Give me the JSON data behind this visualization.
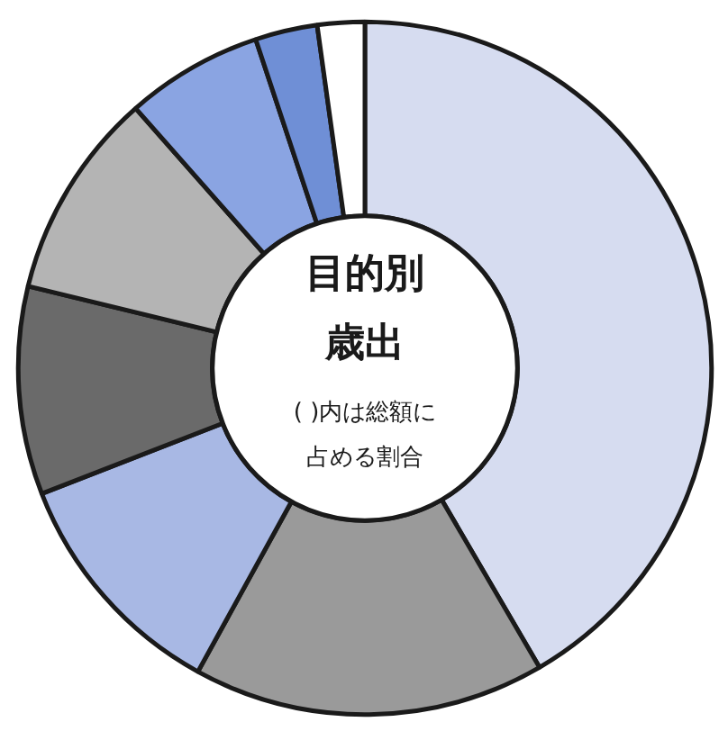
{
  "chart_data": {
    "type": "donut",
    "title": "目的別歳出",
    "subtitle": "( )内は総額に占める割合",
    "categories": [
      null,
      null,
      null,
      null,
      null,
      null,
      null,
      null
    ],
    "values": [
      41.6,
      16.4,
      11.1,
      9.7,
      9.7,
      6.4,
      2.9,
      2.2
    ],
    "colors": [
      "#d6dcf0",
      "#9a9a9a",
      "#a8b8e4",
      "#6a6a6a",
      "#b4b4b4",
      "#8aa4e2",
      "#6f8fd6",
      "#ffffff"
    ]
  }
}
